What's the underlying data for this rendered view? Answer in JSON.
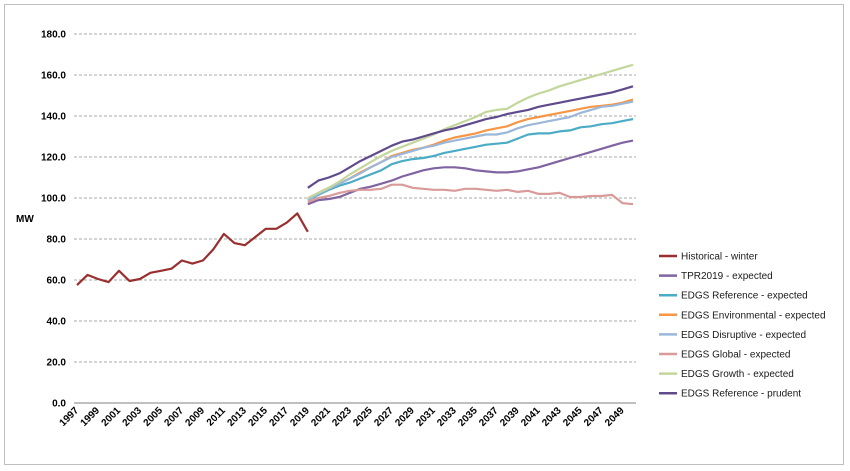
{
  "chart_data": {
    "type": "line",
    "title": "",
    "xlabel": "",
    "ylabel": "MW",
    "ylim": [
      0,
      180
    ],
    "ytick_labels": [
      "0.0",
      "20.0",
      "40.0",
      "60.0",
      "80.0",
      "100.0",
      "120.0",
      "140.0",
      "160.0",
      "180.0"
    ],
    "xlim": [
      1997,
      2050
    ],
    "xtick_labels": [
      "1997",
      "1999",
      "2001",
      "2003",
      "2005",
      "2007",
      "2009",
      "2011",
      "2013",
      "2015",
      "2017",
      "2019",
      "2021",
      "2023",
      "2025",
      "2027",
      "2029",
      "2031",
      "2033",
      "2035",
      "2037",
      "2039",
      "2041",
      "2043",
      "2045",
      "2047",
      "2049"
    ],
    "grid": "horizontal dashed",
    "legend_position": "right",
    "series": [
      {
        "name": "Historical - winter",
        "color": "#9a2f2f",
        "x": [
          1997,
          1998,
          1999,
          2000,
          2001,
          2002,
          2003,
          2004,
          2005,
          2006,
          2007,
          2008,
          2009,
          2010,
          2011,
          2012,
          2013,
          2014,
          2015,
          2016,
          2017,
          2018,
          2019
        ],
        "values": [
          57.5,
          62.5,
          60.5,
          59,
          64.5,
          59.5,
          60.5,
          63.5,
          64.5,
          65.5,
          69.5,
          68,
          69.5,
          75,
          82.5,
          78,
          77,
          81,
          85,
          85,
          88,
          92.5,
          83.5
        ]
      },
      {
        "name": "TPR2019 - expected",
        "color": "#8064a2",
        "x": [
          2019,
          2020,
          2021,
          2022,
          2023,
          2024,
          2025,
          2026,
          2027,
          2028,
          2029,
          2030,
          2031,
          2032,
          2033,
          2034,
          2035,
          2036,
          2037,
          2038,
          2039,
          2040,
          2041,
          2042,
          2043,
          2044,
          2045,
          2046,
          2047,
          2048,
          2049,
          2050
        ],
        "values": [
          97,
          99,
          99.5,
          100.5,
          102.5,
          104.5,
          105.5,
          107,
          108.5,
          110.5,
          112,
          113.5,
          114.5,
          115,
          115,
          114.5,
          113.5,
          113,
          112.5,
          112.5,
          113,
          114,
          115,
          116.5,
          118,
          119.5,
          121,
          122.5,
          124,
          125.5,
          127,
          128
        ]
      },
      {
        "name": "EDGS Reference - expected",
        "color": "#4bacc6",
        "x": [
          2019,
          2020,
          2021,
          2022,
          2023,
          2024,
          2025,
          2026,
          2027,
          2028,
          2029,
          2030,
          2031,
          2032,
          2033,
          2034,
          2035,
          2036,
          2037,
          2038,
          2039,
          2040,
          2041,
          2042,
          2043,
          2044,
          2045,
          2046,
          2047,
          2048,
          2049,
          2050
        ],
        "values": [
          99,
          101.5,
          104,
          106,
          107.5,
          109.5,
          111.5,
          113.5,
          116.5,
          118,
          119,
          119.5,
          120.5,
          122,
          123,
          124,
          125,
          126,
          126.5,
          127,
          129,
          131,
          131.5,
          131.5,
          132.5,
          133,
          134.5,
          135,
          136,
          136.5,
          137.5,
          138.5
        ]
      },
      {
        "name": "EDGS Environmental - expected",
        "color": "#f79646",
        "x": [
          2019,
          2020,
          2021,
          2022,
          2023,
          2024,
          2025,
          2026,
          2027,
          2028,
          2029,
          2030,
          2031,
          2032,
          2033,
          2034,
          2035,
          2036,
          2037,
          2038,
          2039,
          2040,
          2041,
          2042,
          2043,
          2044,
          2045,
          2046,
          2047,
          2048,
          2049,
          2050
        ],
        "values": [
          99,
          102.5,
          105,
          107,
          109.5,
          112.5,
          115,
          117.5,
          120.5,
          122,
          123.5,
          124.5,
          126,
          128,
          129.5,
          130.5,
          131.5,
          133,
          134,
          135,
          137,
          138.5,
          139.5,
          140.5,
          141.5,
          142.5,
          143.5,
          144.5,
          145,
          145.5,
          146.5,
          148
        ]
      },
      {
        "name": "EDGS Disruptive - expected",
        "color": "#9bb7d9",
        "x": [
          2019,
          2020,
          2021,
          2022,
          2023,
          2024,
          2025,
          2026,
          2027,
          2028,
          2029,
          2030,
          2031,
          2032,
          2033,
          2034,
          2035,
          2036,
          2037,
          2038,
          2039,
          2040,
          2041,
          2042,
          2043,
          2044,
          2045,
          2046,
          2047,
          2048,
          2049,
          2050
        ],
        "values": [
          99,
          102,
          104.5,
          107,
          109.5,
          112,
          115,
          117.5,
          120,
          121.5,
          123,
          124.5,
          125.5,
          127,
          128,
          129,
          130,
          131,
          131,
          132,
          134,
          135.5,
          136.5,
          137.5,
          138.5,
          139.5,
          141.5,
          143,
          144.5,
          145,
          146,
          147
        ]
      },
      {
        "name": "EDGS Global - expected",
        "color": "#d99a9a",
        "x": [
          2019,
          2020,
          2021,
          2022,
          2023,
          2024,
          2025,
          2026,
          2027,
          2028,
          2029,
          2030,
          2031,
          2032,
          2033,
          2034,
          2035,
          2036,
          2037,
          2038,
          2039,
          2040,
          2041,
          2042,
          2043,
          2044,
          2045,
          2046,
          2047,
          2048,
          2049,
          2050
        ],
        "values": [
          98,
          100,
          101,
          102.5,
          103.5,
          104,
          104,
          104.5,
          106.5,
          106.5,
          105,
          104.5,
          104,
          104,
          103.5,
          104.5,
          104.5,
          104,
          103.5,
          104,
          103,
          103.5,
          102,
          102,
          102.5,
          100.5,
          100.5,
          101,
          101,
          101.5,
          97.5,
          97
        ]
      },
      {
        "name": "EDGS Growth - expected",
        "color": "#c3d69b",
        "x": [
          2019,
          2020,
          2021,
          2022,
          2023,
          2024,
          2025,
          2026,
          2027,
          2028,
          2029,
          2030,
          2031,
          2032,
          2033,
          2034,
          2035,
          2036,
          2037,
          2038,
          2039,
          2040,
          2041,
          2042,
          2043,
          2044,
          2045,
          2046,
          2047,
          2048,
          2049,
          2050
        ],
        "values": [
          100,
          102.5,
          105,
          108,
          111.5,
          114.5,
          117.5,
          120.5,
          123,
          125,
          127,
          129,
          131,
          133.5,
          135.5,
          137.5,
          139.5,
          142,
          143,
          143.5,
          146.5,
          149,
          151,
          152.5,
          154.5,
          156,
          157.5,
          159,
          160.5,
          162,
          163.5,
          165
        ]
      },
      {
        "name": "EDGS Reference - prudent",
        "color": "#5f4b8b",
        "x": [
          2019,
          2020,
          2021,
          2022,
          2023,
          2024,
          2025,
          2026,
          2027,
          2028,
          2029,
          2030,
          2031,
          2032,
          2033,
          2034,
          2035,
          2036,
          2037,
          2038,
          2039,
          2040,
          2041,
          2042,
          2043,
          2044,
          2045,
          2046,
          2047,
          2048,
          2049,
          2050
        ],
        "values": [
          105,
          108.5,
          110,
          112,
          115,
          118,
          120.5,
          123,
          125.5,
          127.5,
          128.5,
          130,
          131.5,
          133,
          134,
          135.5,
          137,
          138.5,
          139.5,
          141,
          142,
          143,
          144.5,
          145.5,
          146.5,
          147.5,
          148.5,
          149.5,
          150.5,
          151.5,
          153,
          154.5
        ]
      }
    ]
  }
}
